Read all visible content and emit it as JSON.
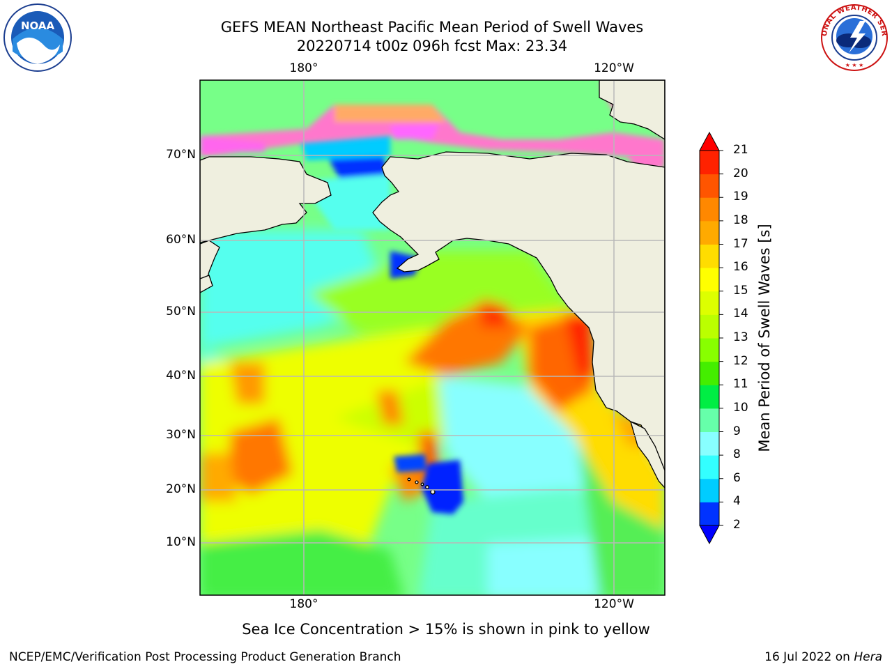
{
  "title": {
    "line1": "GEFS MEAN Northeast Pacific Mean Period of Swell Waves",
    "line2": "20220714 t00z 096h fcst   Max: 23.34"
  },
  "axes": {
    "lon_labels_top": [
      "180°",
      "120°W"
    ],
    "lon_labels_bottom": [
      "180°",
      "120°W"
    ],
    "lat_labels": [
      "70°N",
      "60°N",
      "50°N",
      "40°N",
      "30°N",
      "20°N",
      "10°N"
    ]
  },
  "colorbar": {
    "label": "Mean Period of Swell Waves [s]",
    "ticks": [
      "2",
      "4",
      "6",
      "8",
      "9",
      "10",
      "11",
      "12",
      "13",
      "14",
      "15",
      "16",
      "17",
      "18",
      "19",
      "20",
      "21"
    ],
    "colors": [
      "#0033ff",
      "#00ccff",
      "#33ffff",
      "#88ffff",
      "#66ffaa",
      "#00ee44",
      "#44ee00",
      "#88ff00",
      "#bbff00",
      "#ddff00",
      "#ffff00",
      "#ffdd00",
      "#ffaa00",
      "#ff8800",
      "#ff5500",
      "#ff2200"
    ],
    "under_color": "#0000ff",
    "over_color": "#ff0000"
  },
  "note": "Sea Ice Concentration > 15% is shown in pink to yellow",
  "footer": {
    "left": "NCEP/EMC/Verification Post Processing Product Generation Branch",
    "right_prefix": "16 Jul 2022 on ",
    "right_machine": "Hera"
  },
  "logos": {
    "noaa_text": "NOAA",
    "nws_ring_text": "NATIONAL WEATHER SERVICE"
  },
  "colors": {
    "land": "#efefdf",
    "ocean_base": "#66ffaa",
    "sea_ice": "#ff66cc",
    "grid": "#bbbbbb"
  }
}
